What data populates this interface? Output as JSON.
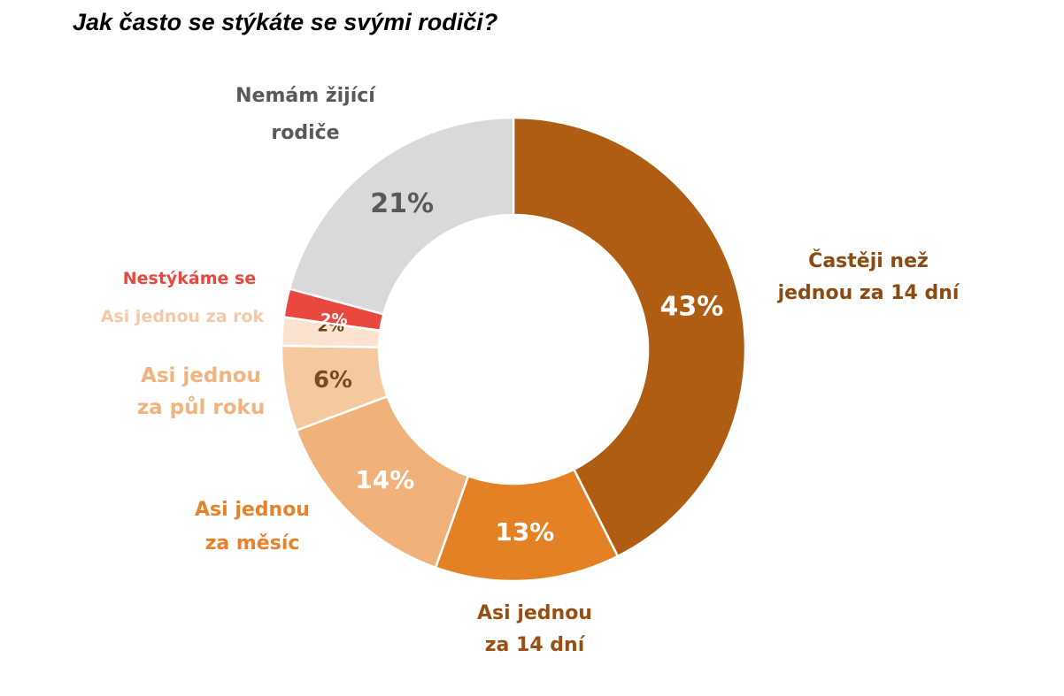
{
  "title": "Jak často se stýkáte se svými rodiči?",
  "chart_data": {
    "type": "pie",
    "title": "Jak často se stýkáte se svými rodiči?",
    "slices": [
      {
        "label": "Častěji než jednou za 14 dní",
        "value": 43,
        "value_label": "43%",
        "label_lines": [
          "Častěji než",
          "jednou za 14 dní"
        ],
        "color": "#B05D14",
        "label_color": "#8B4A10",
        "value_color": "#ffffff"
      },
      {
        "label": "Asi jednou za 14 dní",
        "value": 13,
        "value_label": "13%",
        "label_lines": [
          "Asi jednou",
          "za 14 dní"
        ],
        "color": "#E58125",
        "label_color": "#9A4F12",
        "value_color": "#ffffff"
      },
      {
        "label": "Asi jednou za měsíc",
        "value": 14,
        "value_label": "14%",
        "label_lines": [
          "Asi jednou",
          "za měsíc"
        ],
        "color": "#F0B17A",
        "label_color": "#E5832A",
        "value_color": "#ffffff"
      },
      {
        "label": "Asi jednou za půl roku",
        "value": 6,
        "value_label": "6%",
        "label_lines": [
          "Asi jednou",
          "za půl roku"
        ],
        "color": "#F5C9A0",
        "label_color": "#F2B47F",
        "value_color": "#7A4A20"
      },
      {
        "label": "Asi jednou za rok",
        "value": 2,
        "value_label": "2%",
        "label_lines": [
          "Asi jednou za rok"
        ],
        "color": "#FBE3CF",
        "label_color": "#F5C9A8",
        "value_color": "#6B3E16"
      },
      {
        "label": "Nestýkáme se",
        "value": 2,
        "value_label": "2%",
        "label_lines": [
          "Nestýkáme se"
        ],
        "color": "#E8483E",
        "label_color": "#E8483E",
        "value_color": "#ffffff"
      },
      {
        "label": "Nemám žijící rodiče",
        "value": 21,
        "value_label": "21%",
        "label_lines": [
          "Nemám žijící",
          "rodiče"
        ],
        "color": "#D9D9D9",
        "label_color": "#595959",
        "value_color": "#595959"
      }
    ]
  }
}
